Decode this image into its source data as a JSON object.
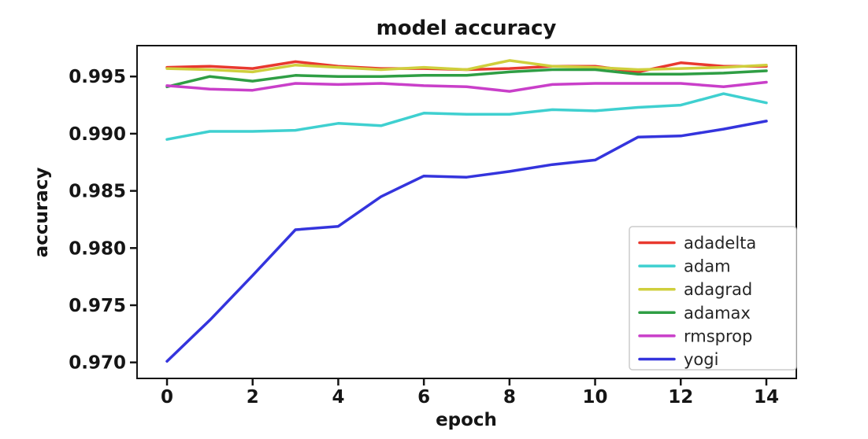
{
  "figure": {
    "background": "#ffffff",
    "axis_color": "#151515"
  },
  "chart_data": {
    "type": "line",
    "title": "model accuracy",
    "xlabel": "epoch",
    "ylabel": "accuracy",
    "x": [
      0,
      1,
      2,
      3,
      4,
      5,
      6,
      7,
      8,
      9,
      10,
      11,
      12,
      13,
      14
    ],
    "series": [
      {
        "name": "adadelta",
        "color": "#e8392f",
        "values": [
          0.9958,
          0.9959,
          0.9957,
          0.9963,
          0.9959,
          0.9957,
          0.9957,
          0.9956,
          0.9957,
          0.9959,
          0.9959,
          0.9954,
          0.9962,
          0.9959,
          0.9959
        ]
      },
      {
        "name": "adam",
        "color": "#3fd0d0",
        "values": [
          0.9895,
          0.9902,
          0.9902,
          0.9903,
          0.9909,
          0.9907,
          0.9918,
          0.9917,
          0.9917,
          0.9921,
          0.992,
          0.9923,
          0.9925,
          0.9935,
          0.9927
        ]
      },
      {
        "name": "adagrad",
        "color": "#cfcf3c",
        "values": [
          0.9957,
          0.9956,
          0.9954,
          0.996,
          0.9958,
          0.9956,
          0.9958,
          0.9956,
          0.9964,
          0.9959,
          0.9958,
          0.9956,
          0.9957,
          0.9958,
          0.996
        ]
      },
      {
        "name": "adamax",
        "color": "#2f9e44",
        "values": [
          0.9941,
          0.995,
          0.9946,
          0.9951,
          0.995,
          0.995,
          0.9951,
          0.9951,
          0.9954,
          0.9956,
          0.9956,
          0.9952,
          0.9952,
          0.9953,
          0.9955
        ]
      },
      {
        "name": "rmsprop",
        "color": "#c93fc9",
        "values": [
          0.9942,
          0.9939,
          0.9938,
          0.9944,
          0.9943,
          0.9944,
          0.9942,
          0.9941,
          0.9937,
          0.9943,
          0.9944,
          0.9944,
          0.9944,
          0.9941,
          0.9945
        ]
      },
      {
        "name": "yogi",
        "color": "#3434dd",
        "values": [
          0.9701,
          0.9737,
          0.9776,
          0.9816,
          0.9819,
          0.9845,
          0.9863,
          0.9862,
          0.9867,
          0.9873,
          0.9877,
          0.9897,
          0.9898,
          0.9904,
          0.9911
        ]
      }
    ],
    "xticks": [
      0,
      2,
      4,
      6,
      8,
      10,
      12,
      14
    ],
    "xtick_labels": [
      "0",
      "2",
      "4",
      "6",
      "8",
      "10",
      "12",
      "14"
    ],
    "yticks": [
      0.97,
      0.975,
      0.98,
      0.985,
      0.99,
      0.995
    ],
    "ytick_labels": [
      "0.970",
      "0.975",
      "0.980",
      "0.985",
      "0.990",
      "0.995"
    ],
    "xlim": [
      -0.7,
      14.7
    ],
    "ylim": [
      0.9686,
      0.9977
    ],
    "grid": false,
    "legend_position": "lower-right",
    "legend_border_color": "#cccccc"
  }
}
